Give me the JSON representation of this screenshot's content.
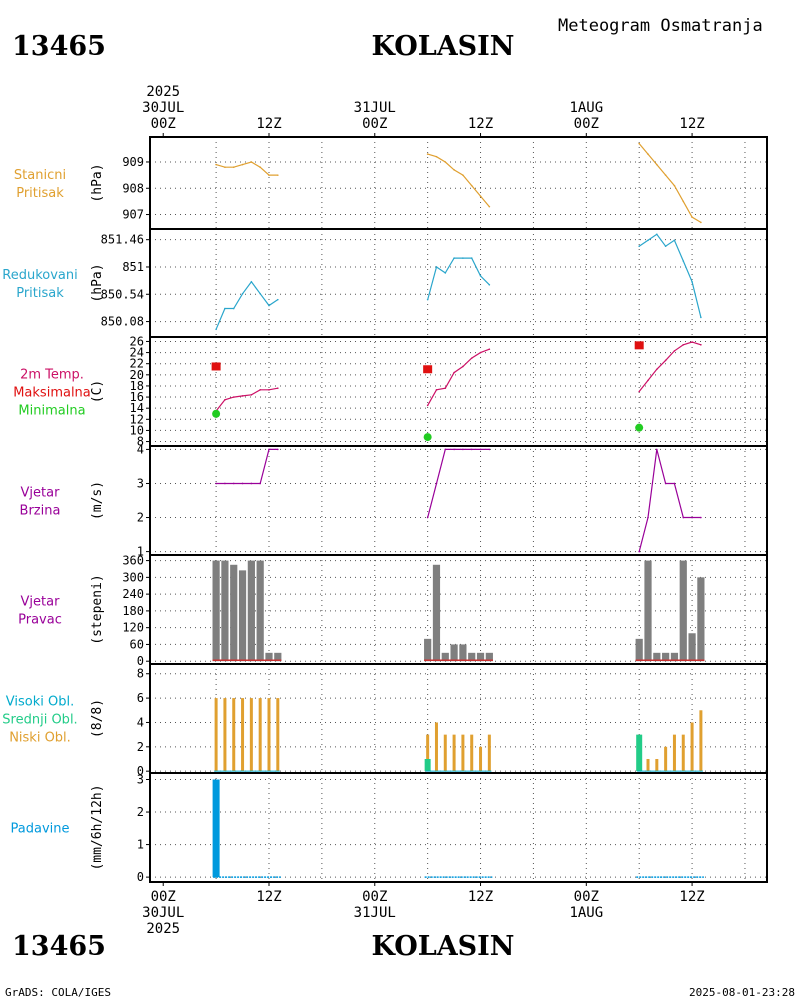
{
  "header": {
    "station_id": "13465",
    "station_name": "KOLASIN",
    "product_title": "Meteogram Osmatranja"
  },
  "footer": {
    "station_id": "13465",
    "station_name": "KOLASIN",
    "credit": "GrADS: COLA/IGES",
    "timestamp": "2025-08-01-23:28"
  },
  "time_axis": {
    "ticks": [
      {
        "h": 0,
        "top": [
          "2025",
          "30JUL",
          "00Z"
        ],
        "bottom": [
          "00Z",
          "30JUL",
          "2025"
        ]
      },
      {
        "h": 12,
        "top": [
          "12Z"
        ],
        "bottom": [
          "12Z"
        ]
      },
      {
        "h": 24,
        "top": [
          "31JUL",
          "00Z"
        ],
        "bottom": [
          "00Z",
          "31JUL"
        ]
      },
      {
        "h": 36,
        "top": [
          "12Z"
        ],
        "bottom": [
          "12Z"
        ]
      },
      {
        "h": 48,
        "top": [
          "1AUG",
          "00Z"
        ],
        "bottom": [
          "00Z",
          "1AUG"
        ]
      },
      {
        "h": 60,
        "top": [
          "12Z"
        ],
        "bottom": [
          "12Z"
        ]
      }
    ],
    "range_hours": [
      -1.5,
      68.5
    ]
  },
  "colors": {
    "pressure": "#e0a030",
    "reduced_pressure": "#2aa6cc",
    "temp_label": "#cc1166",
    "tmax": "#e01010",
    "tmin": "#22cc22",
    "wind": "#990099",
    "bars_gray": "#7f7f7f",
    "dir_low": "#cc3333",
    "cloud_low": "#e0a030",
    "cloud_mid": "#22cc88",
    "cloud_high": "#00aacc",
    "precip": "#0099dd",
    "grid": "#555555"
  },
  "chart_data": [
    {
      "id": "station_pressure",
      "type": "line",
      "labels": [
        "Stanicni",
        "Pritisak"
      ],
      "unit": "(hPa)",
      "yticks": [
        "909",
        "908",
        "907"
      ],
      "ylim": [
        906.45,
        909.95
      ],
      "series": [
        {
          "name": "Stanicni Pritisak",
          "segments": [
            [
              [
                6,
                908.9
              ],
              [
                7,
                908.8
              ],
              [
                8,
                908.8
              ],
              [
                9,
                908.9
              ],
              [
                10,
                909.0
              ],
              [
                11,
                908.8
              ],
              [
                12,
                908.5
              ],
              [
                13,
                908.5
              ]
            ],
            [
              [
                30,
                909.3
              ],
              [
                31,
                909.2
              ],
              [
                32,
                909.0
              ],
              [
                33,
                908.7
              ],
              [
                34,
                908.5
              ],
              [
                35,
                908.1
              ],
              [
                36,
                907.7
              ],
              [
                37,
                907.3
              ]
            ],
            [
              [
                54,
                909.7
              ],
              [
                55,
                909.3
              ],
              [
                56,
                908.9
              ],
              [
                57,
                908.5
              ],
              [
                58,
                908.1
              ],
              [
                59,
                907.5
              ],
              [
                60,
                906.9
              ],
              [
                61,
                906.7
              ]
            ]
          ]
        }
      ]
    },
    {
      "id": "reduced_pressure",
      "type": "line",
      "labels": [
        "Redukovani",
        "Pritisak"
      ],
      "unit": "(hPa)",
      "yticks": [
        "851.46",
        "851",
        "850.54",
        "850.08"
      ],
      "ylim": [
        849.82,
        851.64
      ],
      "series": [
        {
          "name": "Redukovani Pritisak",
          "segments": [
            [
              [
                6,
                849.95
              ],
              [
                7,
                850.3
              ],
              [
                8,
                850.3
              ],
              [
                9,
                850.55
              ],
              [
                10,
                850.75
              ],
              [
                11,
                850.55
              ],
              [
                12,
                850.35
              ],
              [
                13,
                850.45
              ]
            ],
            [
              [
                30,
                850.45
              ],
              [
                31,
                851.0
              ],
              [
                32,
                850.9
              ],
              [
                33,
                851.15
              ],
              [
                34,
                851.15
              ],
              [
                35,
                851.15
              ],
              [
                36,
                850.85
              ],
              [
                37,
                850.7
              ]
            ],
            [
              [
                54,
                851.35
              ],
              [
                55,
                851.45
              ],
              [
                56,
                851.55
              ],
              [
                57,
                851.35
              ],
              [
                58,
                851.45
              ],
              [
                59,
                851.1
              ],
              [
                60,
                850.75
              ],
              [
                61,
                850.15
              ]
            ]
          ]
        }
      ]
    },
    {
      "id": "temperature",
      "type": "line",
      "labels": [
        "2m Temp.",
        "Maksimalna",
        "Minimalna"
      ],
      "unit": "(C)",
      "yticks": [
        "26",
        "24",
        "22",
        "20",
        "18",
        "16",
        "14",
        "12",
        "10",
        "8"
      ],
      "ylim": [
        7.2,
        26.8
      ],
      "series": [
        {
          "name": "2m Temp.",
          "segments": [
            [
              [
                6,
                13.5
              ],
              [
                7,
                15.5
              ],
              [
                8,
                16.0
              ],
              [
                9,
                16.2
              ],
              [
                10,
                16.4
              ],
              [
                11,
                17.3
              ],
              [
                12,
                17.3
              ],
              [
                13,
                17.6
              ]
            ],
            [
              [
                30,
                14.5
              ],
              [
                31,
                17.3
              ],
              [
                32,
                17.6
              ],
              [
                33,
                20.4
              ],
              [
                34,
                21.5
              ],
              [
                35,
                23.0
              ],
              [
                36,
                24.0
              ],
              [
                37,
                24.6
              ]
            ],
            [
              [
                54,
                17.0
              ],
              [
                55,
                19.0
              ],
              [
                56,
                21.0
              ],
              [
                57,
                22.6
              ],
              [
                58,
                24.3
              ],
              [
                59,
                25.4
              ],
              [
                60,
                25.9
              ],
              [
                61,
                25.4
              ]
            ]
          ]
        }
      ],
      "maximum": [
        [
          6,
          21.5
        ],
        [
          30,
          21.0
        ],
        [
          54,
          25.3
        ]
      ],
      "minimum": [
        [
          6,
          13.0
        ],
        [
          30,
          8.8
        ],
        [
          54,
          10.5
        ]
      ]
    },
    {
      "id": "wind_speed",
      "type": "line",
      "labels": [
        "Vjetar",
        "Brzina"
      ],
      "unit": "(m/s)",
      "yticks": [
        "4",
        "3",
        "2",
        "1"
      ],
      "ylim": [
        0.9,
        4.1
      ],
      "series": [
        {
          "name": "Vjetar Brzina",
          "segments": [
            [
              [
                6,
                3
              ],
              [
                7,
                3
              ],
              [
                8,
                3
              ],
              [
                9,
                3
              ],
              [
                10,
                3
              ],
              [
                11,
                3
              ],
              [
                12,
                4
              ],
              [
                13,
                4
              ]
            ],
            [
              [
                30,
                2
              ],
              [
                31,
                3
              ],
              [
                32,
                4
              ],
              [
                33,
                4
              ],
              [
                34,
                4
              ],
              [
                35,
                4
              ],
              [
                36,
                4
              ],
              [
                37,
                4
              ]
            ],
            [
              [
                54,
                1
              ],
              [
                55,
                2
              ],
              [
                56,
                4
              ],
              [
                57,
                3
              ],
              [
                58,
                3
              ],
              [
                59,
                2
              ],
              [
                60,
                2
              ],
              [
                61,
                2
              ]
            ]
          ]
        }
      ]
    },
    {
      "id": "wind_direction",
      "type": "bar",
      "labels": [
        "Vjetar",
        "Pravac"
      ],
      "unit": "(stepeni)",
      "yticks": [
        "360",
        "300",
        "240",
        "180",
        "120",
        "60",
        "0"
      ],
      "ylim": [
        -10,
        380
      ],
      "x": [
        6,
        7,
        8,
        9,
        10,
        11,
        12,
        13,
        30,
        31,
        32,
        33,
        34,
        35,
        36,
        37,
        54,
        55,
        56,
        57,
        58,
        59,
        60,
        61
      ],
      "values": [
        360,
        360,
        345,
        325,
        360,
        360,
        30,
        30,
        80,
        345,
        30,
        60,
        60,
        30,
        30,
        30,
        80,
        360,
        30,
        30,
        30,
        360,
        100,
        300
      ]
    },
    {
      "id": "clouds",
      "type": "bar",
      "labels": [
        "Visoki Obl.",
        "Srednji Obl.",
        "Niski Obl."
      ],
      "unit": "(8/8)",
      "yticks": [
        "8",
        "6",
        "4",
        "2",
        "0"
      ],
      "ylim": [
        -0.15,
        8.8
      ],
      "x": [
        6,
        7,
        8,
        9,
        10,
        11,
        12,
        13,
        30,
        31,
        32,
        33,
        34,
        35,
        36,
        37,
        54,
        55,
        56,
        57,
        58,
        59,
        60,
        61
      ],
      "series": [
        {
          "name": "Niski Obl.",
          "values": [
            6,
            6,
            6,
            6,
            6,
            6,
            6,
            6,
            3,
            4,
            3,
            3,
            3,
            3,
            2,
            3,
            0,
            1,
            1,
            2,
            3,
            3,
            4,
            5
          ]
        },
        {
          "name": "Srednji Obl.",
          "values": [
            0,
            0,
            0,
            0,
            0,
            0,
            0,
            0,
            1,
            0,
            0,
            0,
            0,
            0,
            0,
            0,
            3,
            0,
            0,
            0,
            0,
            0,
            0,
            0
          ]
        },
        {
          "name": "Visoki Obl.",
          "values": [
            0,
            0,
            0,
            0,
            0,
            0,
            0,
            0,
            0,
            0,
            0,
            0,
            0,
            0,
            0,
            0,
            0,
            0,
            0,
            0,
            0,
            0,
            0,
            0
          ]
        }
      ]
    },
    {
      "id": "precipitation",
      "type": "bar",
      "labels": [
        "Padavine"
      ],
      "unit": "(mm/6h/12h)",
      "yticks": [
        "3",
        "2",
        "1",
        "0"
      ],
      "ylim": [
        -0.15,
        3.2
      ],
      "x": [
        6,
        7,
        8,
        9,
        10,
        11,
        12,
        13,
        30,
        31,
        32,
        33,
        34,
        35,
        36,
        37,
        54,
        55,
        56,
        57,
        58,
        59,
        60,
        61
      ],
      "values": [
        3,
        0,
        0,
        0,
        0,
        0,
        0,
        0,
        0,
        0,
        0,
        0,
        0,
        0,
        0,
        0,
        0,
        0,
        0,
        0,
        0,
        0,
        0,
        0
      ]
    }
  ]
}
